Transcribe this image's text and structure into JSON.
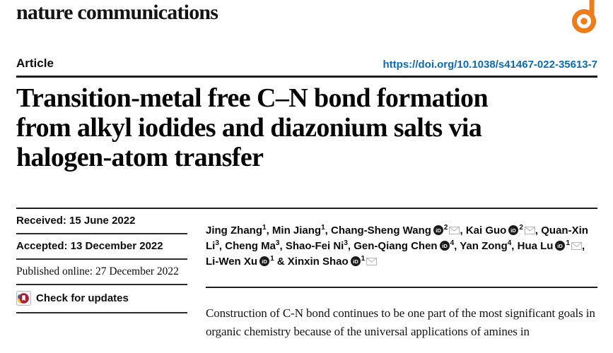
{
  "journal": {
    "name": "nature communications"
  },
  "header": {
    "type_label": "Article",
    "doi": "https://doi.org/10.1038/s41467-022-35613-7"
  },
  "title": {
    "full": "Transition-metal free C–N bond formation from alkyl iodides and diazonium salts via halogen-atom transfer",
    "lines": [
      "Transition-metal free C–N bond formation",
      "from alkyl iodides and diazonium salts via",
      "halogen-atom transfer"
    ]
  },
  "dates": {
    "received": "Received: 15 June 2022",
    "accepted": "Accepted: 13 December 2022",
    "published": "Published online: 27 December 2022"
  },
  "check_for_updates": {
    "label": "Check for updates"
  },
  "authors": [
    {
      "name": "Jing Zhang",
      "sup": "1",
      "orcid": false,
      "email": false
    },
    {
      "name": "Min Jiang",
      "sup": "1",
      "orcid": false,
      "email": false
    },
    {
      "name": "Chang-Sheng Wang",
      "sup": "2",
      "orcid": true,
      "email": true
    },
    {
      "name": "Kai Guo",
      "sup": "2",
      "orcid": true,
      "email": true
    },
    {
      "name": "Quan-Xin Li",
      "sup": "3",
      "orcid": false,
      "email": false
    },
    {
      "name": "Cheng Ma",
      "sup": "3",
      "orcid": false,
      "email": false
    },
    {
      "name": "Shao-Fei Ni",
      "sup": "3",
      "orcid": false,
      "email": false
    },
    {
      "name": "Gen-Qiang Chen",
      "sup": "4",
      "orcid": true,
      "email": false
    },
    {
      "name": "Yan Zong",
      "sup": "4",
      "orcid": false,
      "email": false
    },
    {
      "name": "Hua Lu",
      "sup": "1",
      "orcid": true,
      "email": true
    },
    {
      "name": "Li-Wen Xu",
      "sup": "1",
      "orcid": true,
      "email": false
    },
    {
      "name": "Xinxin Shao",
      "sup": "1",
      "orcid": true,
      "email": true
    }
  ],
  "abstract": {
    "text": "Construction of C-N bond continues to be one part of the most significant goals in organic chemistry because of the universal applications of amines in"
  },
  "colors": {
    "accent_orange": "#ef7c1a",
    "link_blue": "#0a6cb5",
    "orcid_black": "#1b1b1b",
    "envelope_gray": "#b5b5b5",
    "crossmark_red": "#a81e35",
    "crossmark_blue": "#2a6db8",
    "crossmark_yellow": "#f3c117"
  }
}
